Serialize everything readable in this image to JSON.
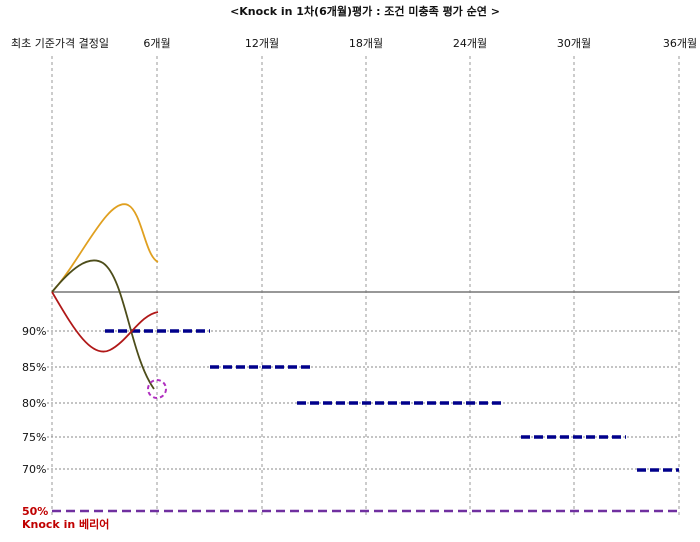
{
  "title": "<Knock in 1차(6개월)평가 : 조건 미충족 평가 순연 >",
  "columns": [
    "최초 기준가격 결정일",
    "6개월",
    "12개월",
    "18개월",
    "24개월",
    "30개월",
    "36개월"
  ],
  "levels": [
    "90%",
    "85%",
    "80%",
    "75%",
    "70%"
  ],
  "barrier": {
    "level": "50%",
    "label": "Knock in 베리어"
  }
}
